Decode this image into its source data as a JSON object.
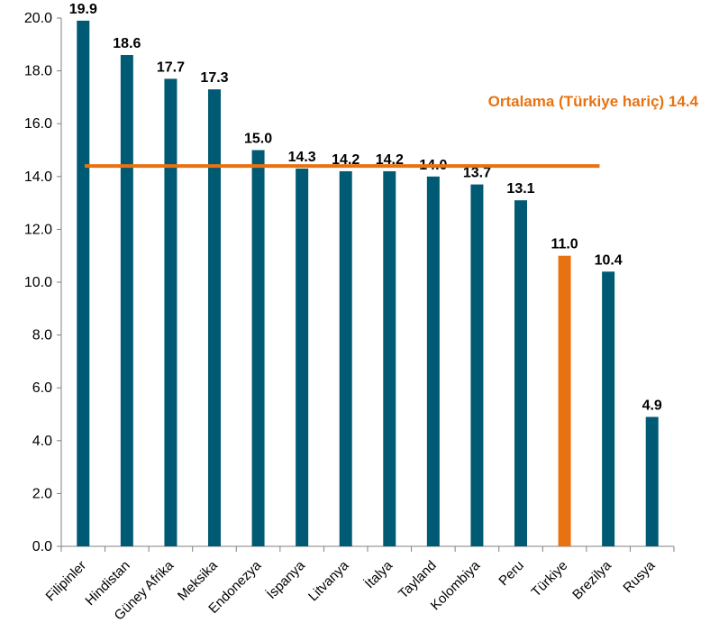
{
  "chart_data": {
    "type": "bar",
    "title": "",
    "xlabel": "",
    "ylabel": "",
    "ylim": [
      0,
      20
    ],
    "yticks": [
      "0.0",
      "2.0",
      "4.0",
      "6.0",
      "8.0",
      "10.0",
      "12.0",
      "14.0",
      "16.0",
      "18.0",
      "20.0"
    ],
    "grid": false,
    "categories": [
      "Filipinler",
      "Hindistan",
      "Güney Afrika",
      "Meksika",
      "Endonezya",
      "İspanya",
      "Litvanya",
      "İtalya",
      "Tayland",
      "Kolombiya",
      "Peru",
      "Türkiye",
      "Brezilya",
      "Rusya"
    ],
    "values": [
      19.9,
      18.6,
      17.7,
      17.3,
      15.0,
      14.3,
      14.2,
      14.2,
      14.0,
      13.7,
      13.1,
      11.0,
      10.4,
      4.9
    ],
    "value_labels": [
      "19.9",
      "18.6",
      "17.7",
      "17.3",
      "15.0",
      "14.3",
      "14.2",
      "14.2",
      "14.0",
      "13.7",
      "13.1",
      "11.0",
      "10.4",
      "4.9"
    ],
    "highlight_category": "Türkiye",
    "average": {
      "value": 14.4,
      "label": "Ortalama (Türkiye hariç) 14.4"
    },
    "colors": {
      "bar": "#005a73",
      "highlight": "#e87211",
      "average_line": "#e87211",
      "axis": "#808080"
    }
  }
}
